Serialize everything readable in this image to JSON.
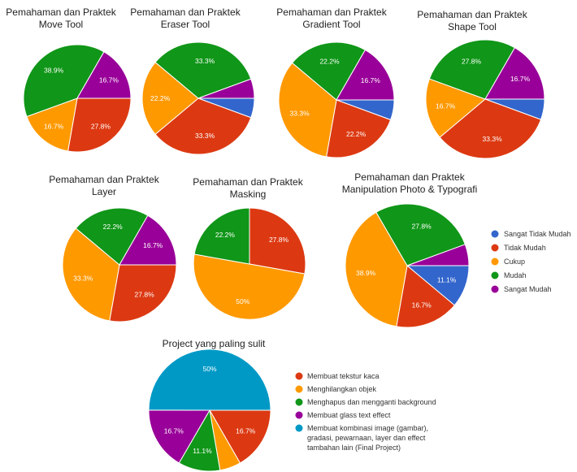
{
  "colors": {
    "sangat_tidak_mudah": "#3366cc",
    "tidak_mudah": "#dc3912",
    "cukup": "#ff9900",
    "mudah": "#109618",
    "sangat_mudah": "#990099",
    "final_project": "#0099c6"
  },
  "legend_main": [
    "Sangat Tidak Mudah",
    "Tidak Mudah",
    "Cukup",
    "Mudah",
    "Sangat Mudah"
  ],
  "legend_project": [
    "Membuat tekstur kaca",
    "Menghilangkan objek",
    "Menghapus dan mengganti background",
    "Membuat glass text effect",
    "Membuat kombinasi image (gambar),",
    "gradasi, pewarnaan, layer dan effect",
    "tambahan lain (Final Project)"
  ],
  "chart_data": [
    {
      "type": "pie",
      "title_line1": "Pemahaman dan  Praktek",
      "title_line2": "Move Tool",
      "categories": [
        "Sangat Tidak Mudah",
        "Tidak Mudah",
        "Cukup",
        "Mudah",
        "Sangat Mudah"
      ],
      "values": [
        0,
        27.8,
        16.7,
        38.9,
        16.7
      ],
      "labels": [
        "",
        "27.8%",
        "16.7%",
        "38.9%",
        "16.7%"
      ]
    },
    {
      "type": "pie",
      "title_line1": "Pemahaman dan  Praktek",
      "title_line2": "Eraser Tool",
      "categories": [
        "Sangat Tidak Mudah",
        "Tidak Mudah",
        "Cukup",
        "Mudah",
        "Sangat Mudah"
      ],
      "values": [
        5.6,
        33.3,
        22.2,
        33.3,
        5.6
      ],
      "labels": [
        "",
        "33.3%",
        "22.2%",
        "33.3%",
        ""
      ]
    },
    {
      "type": "pie",
      "title_line1": "Pemahaman dan  Praktek",
      "title_line2": "Gradient Tool",
      "categories": [
        "Sangat Tidak Mudah",
        "Tidak Mudah",
        "Cukup",
        "Mudah",
        "Sangat Mudah"
      ],
      "values": [
        5.6,
        22.2,
        33.3,
        22.2,
        16.7
      ],
      "labels": [
        "",
        "22.2%",
        "33.3%",
        "22.2%",
        "16.7%"
      ]
    },
    {
      "type": "pie",
      "title_line1": "Pemahaman dan  Praktek",
      "title_line2": "Shape Tool",
      "categories": [
        "Sangat Tidak Mudah",
        "Tidak Mudah",
        "Cukup",
        "Mudah",
        "Sangat Mudah"
      ],
      "values": [
        5.6,
        33.3,
        16.7,
        27.8,
        16.7
      ],
      "labels": [
        "",
        "33.3%",
        "16.7%",
        "27.8%",
        "16.7%"
      ]
    },
    {
      "type": "pie",
      "title_line1": "Pemahaman dan  Praktek",
      "title_line2": "Layer",
      "categories": [
        "Sangat Tidak Mudah",
        "Tidak Mudah",
        "Cukup",
        "Mudah",
        "Sangat Mudah"
      ],
      "values": [
        0,
        27.8,
        33.3,
        22.2,
        16.7
      ],
      "labels": [
        "",
        "27.8%",
        "33.3%",
        "22.2%",
        "16.7%"
      ]
    },
    {
      "type": "pie",
      "title_line1": "Pemahaman dan  Praktek",
      "title_line2": "Masking",
      "categories": [
        "Sangat Tidak Mudah",
        "Tidak Mudah",
        "Cukup",
        "Mudah",
        "Sangat Mudah"
      ],
      "values": [
        0,
        27.8,
        50,
        22.2,
        0
      ],
      "labels": [
        "",
        "27.8%",
        "50%",
        "22.2%",
        ""
      ]
    },
    {
      "type": "pie",
      "title_line1": "Pemahaman dan  Praktek",
      "title_line2": "Manipulation Photo & Typografi",
      "categories": [
        "Sangat Tidak Mudah",
        "Tidak Mudah",
        "Cukup",
        "Mudah",
        "Sangat Mudah"
      ],
      "values": [
        11.1,
        16.7,
        38.9,
        27.8,
        5.6
      ],
      "labels": [
        "11.1%",
        "16.7%",
        "38.9%",
        "27.8%",
        ""
      ]
    },
    {
      "type": "pie",
      "title_line1": "Project yang paling sulit",
      "title_line2": "",
      "categories": [
        "Membuat tekstur kaca",
        "Menghilangkan objek",
        "Menghapus dan mengganti background",
        "Membuat glass text effect",
        "Membuat kombinasi image (gambar), gradasi, pewarnaan, layer dan effect tambahan lain (Final Project)"
      ],
      "values": [
        16.7,
        5.6,
        11.1,
        16.7,
        50
      ],
      "labels": [
        "16.7%",
        "",
        "11.1%",
        "16.7%",
        "50%"
      ]
    }
  ]
}
